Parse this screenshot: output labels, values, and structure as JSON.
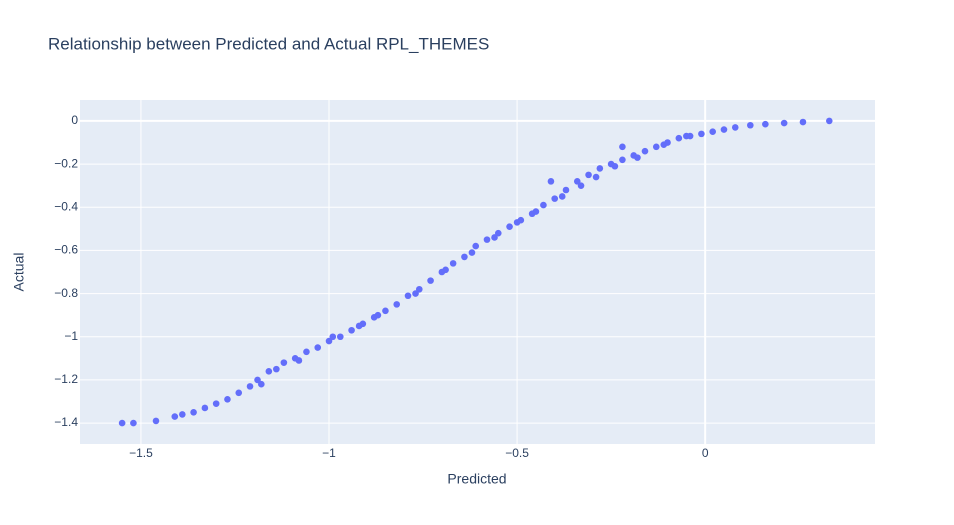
{
  "chart_data": {
    "type": "scatter",
    "title": "Relationship between Predicted and Actual RPL_THEMES",
    "x_label": "Predicted",
    "y_label": "Actual",
    "color": "#636efa",
    "grid": true,
    "xlim": [
      -1.662,
      0.4515
    ],
    "ylim": [
      -1.497,
      0.097
    ],
    "xticks": [
      {
        "value": -1.5,
        "label": "−1.5"
      },
      {
        "value": -1,
        "label": "−1"
      },
      {
        "value": -0.5,
        "label": "−0.5"
      },
      0
    ],
    "yticks": [
      0,
      {
        "value": -0.2,
        "label": "−0.2"
      },
      {
        "value": -0.4,
        "label": "−0.4"
      },
      {
        "value": -0.6,
        "label": "−0.6"
      },
      {
        "value": -0.8,
        "label": "−0.8"
      },
      {
        "value": -1,
        "label": "−1"
      },
      {
        "value": -1.2,
        "label": "−1.2"
      },
      {
        "value": -1.4,
        "label": "−1.4"
      }
    ],
    "series": [
      {
        "x": [
          -1.55,
          -1.52,
          -1.46,
          -1.41,
          -1.39,
          -1.36,
          -1.33,
          -1.3,
          -1.27,
          -1.24,
          -1.21,
          -1.19,
          -1.16,
          -1.12,
          -1.09,
          -1.06,
          -1.03,
          -1.0,
          -0.97,
          -0.94,
          -0.91,
          -0.88,
          -0.85,
          -0.82,
          -0.79,
          -0.76,
          -0.73,
          -0.7,
          -0.67,
          -0.64,
          -0.61,
          -0.58,
          -0.55,
          -0.52,
          -0.49,
          -0.46,
          -0.43,
          -0.4,
          -0.37,
          -0.34,
          -0.31,
          -0.28,
          -0.25,
          -0.22,
          -0.19,
          -0.16,
          -0.13,
          -0.1,
          -0.07,
          -0.04,
          -0.01,
          0.02,
          0.05,
          0.08,
          0.12,
          0.16,
          0.21,
          0.26,
          0.33,
          -0.41,
          -0.22,
          -1.18,
          -1.14,
          -1.08,
          -0.99,
          -0.92,
          -0.87,
          -0.77,
          -0.69,
          -0.62,
          -0.56,
          -0.5,
          -0.45,
          -0.38,
          -0.33,
          -0.29,
          -0.24,
          -0.18,
          -0.11,
          -0.05
        ],
        "values": [
          -1.4,
          -1.4,
          -1.39,
          -1.37,
          -1.36,
          -1.35,
          -1.33,
          -1.31,
          -1.29,
          -1.26,
          -1.23,
          -1.2,
          -1.16,
          -1.12,
          -1.1,
          -1.07,
          -1.05,
          -1.02,
          -1.0,
          -0.97,
          -0.94,
          -0.91,
          -0.88,
          -0.85,
          -0.81,
          -0.78,
          -0.74,
          -0.7,
          -0.66,
          -0.63,
          -0.58,
          -0.55,
          -0.52,
          -0.49,
          -0.46,
          -0.43,
          -0.39,
          -0.36,
          -0.32,
          -0.28,
          -0.25,
          -0.22,
          -0.2,
          -0.18,
          -0.16,
          -0.14,
          -0.12,
          -0.1,
          -0.08,
          -0.07,
          -0.06,
          -0.05,
          -0.04,
          -0.03,
          -0.02,
          -0.015,
          -0.01,
          -0.005,
          0.0,
          -0.28,
          -0.12,
          -1.22,
          -1.15,
          -1.11,
          -1.0,
          -0.95,
          -0.9,
          -0.8,
          -0.69,
          -0.61,
          -0.54,
          -0.47,
          -0.42,
          -0.35,
          -0.3,
          -0.26,
          -0.21,
          -0.17,
          -0.11,
          -0.07
        ]
      }
    ]
  }
}
